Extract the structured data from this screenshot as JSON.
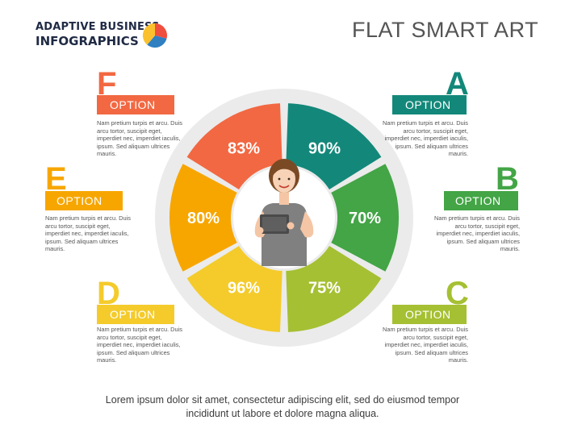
{
  "logo": {
    "line1": "ADAPTIVE BUSINESS",
    "line2": "INFOGRAPHICS"
  },
  "title": "FLAT SMART ART",
  "segments": [
    {
      "percent": "90%",
      "color": "#13887a"
    },
    {
      "percent": "70%",
      "color": "#43a546"
    },
    {
      "percent": "75%",
      "color": "#a5c032"
    },
    {
      "percent": "96%",
      "color": "#f4cb2b"
    },
    {
      "percent": "80%",
      "color": "#f7a600"
    },
    {
      "percent": "83%",
      "color": "#f26842"
    }
  ],
  "options": [
    {
      "letter": "A",
      "label": "OPTION",
      "color": "#13887a",
      "text": "Nam pretium turpis et arcu. Duis arcu tortor, suscipit eget, imperdiet nec, imperdiet iaculis, ipsum. Sed aliquam ultrices mauris."
    },
    {
      "letter": "B",
      "label": "OPTION",
      "color": "#43a546",
      "text": "Nam pretium turpis et arcu. Duis arcu tortor, suscipit eget, imperdiet nec, imperdiet iaculis, ipsum. Sed aliquam ultrices mauris."
    },
    {
      "letter": "C",
      "label": "OPTION",
      "color": "#a5c032",
      "text": "Nam pretium turpis et arcu. Duis arcu tortor, suscipit eget, imperdiet nec, imperdiet iaculis, ipsum. Sed aliquam ultrices mauris."
    },
    {
      "letter": "D",
      "label": "OPTION",
      "color": "#f4cb2b",
      "text": "Nam pretium turpis et arcu. Duis arcu tortor, suscipit eget, imperdiet nec, imperdiet iaculis, ipsum. Sed aliquam ultrices mauris."
    },
    {
      "letter": "E",
      "label": "OPTION",
      "color": "#f7a600",
      "text": "Nam pretium turpis et arcu. Duis arcu tortor, suscipit eget, imperdiet nec, imperdiet iaculis, ipsum. Sed aliquam ultrices mauris."
    },
    {
      "letter": "F",
      "label": "OPTION",
      "color": "#f26842",
      "text": "Nam pretium turpis et arcu. Duis arcu tortor, suscipit eget, imperdiet nec, imperdiet iaculis, ipsum. Sed aliquam ultrices mauris."
    }
  ],
  "footer": {
    "line1": "Lorem ipsum dolor sit amet, consectetur adipiscing elit, sed do eiusmod tempor",
    "line2": "incididunt ut labore et dolore magna aliqua."
  },
  "icons": {
    "logo": "pie-chart-icon",
    "center": "woman-with-tablet-icon"
  },
  "colors": {
    "ring": "#ebebeb",
    "title": "#545454",
    "logo_text": "#1f2a44"
  }
}
